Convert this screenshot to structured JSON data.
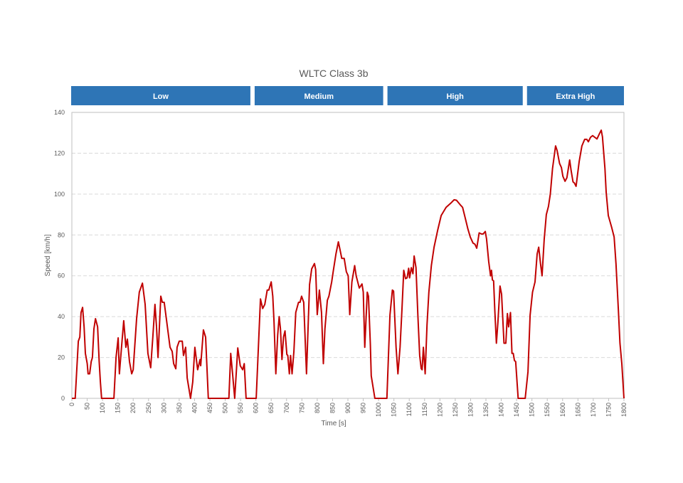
{
  "chart_data": {
    "type": "line",
    "title": "WLTC Class 3b",
    "xlabel": "Time [s]",
    "ylabel": "Speed [km/h]",
    "xlim": [
      0,
      1800
    ],
    "ylim": [
      0,
      140
    ],
    "xticks": [
      0,
      50,
      100,
      150,
      200,
      250,
      300,
      350,
      400,
      450,
      500,
      550,
      600,
      650,
      700,
      750,
      800,
      850,
      900,
      950,
      1000,
      1050,
      1100,
      1150,
      1200,
      1250,
      1300,
      1350,
      1400,
      1450,
      1500,
      1550,
      1600,
      1650,
      1700,
      1750,
      1800
    ],
    "yticks": [
      0,
      20,
      40,
      60,
      80,
      100,
      120,
      140
    ],
    "grid": "horizontal dashed",
    "line_color": "#c00000",
    "phases": [
      {
        "label": "Low",
        "start": 0,
        "end": 589
      },
      {
        "label": "Medium",
        "start": 589,
        "end": 1022
      },
      {
        "label": "High",
        "start": 1022,
        "end": 1477
      },
      {
        "label": "Extra High",
        "start": 1477,
        "end": 1800
      }
    ],
    "phase_color": "#2e75b6",
    "series": [
      {
        "points": [
          [
            0,
            0
          ],
          [
            11,
            0
          ],
          [
            21,
            28
          ],
          [
            26,
            30
          ],
          [
            30,
            42
          ],
          [
            35,
            44.5
          ],
          [
            40,
            35
          ],
          [
            44,
            22
          ],
          [
            50,
            17
          ],
          [
            53,
            12
          ],
          [
            58,
            12
          ],
          [
            63,
            18
          ],
          [
            67,
            20
          ],
          [
            72,
            34
          ],
          [
            77,
            39
          ],
          [
            84,
            35
          ],
          [
            89,
            18
          ],
          [
            93,
            8
          ],
          [
            97,
            0
          ],
          [
            137,
            0
          ],
          [
            144,
            20
          ],
          [
            151,
            29.6
          ],
          [
            155,
            12
          ],
          [
            162,
            25
          ],
          [
            169,
            38
          ],
          [
            176,
            25
          ],
          [
            181,
            29
          ],
          [
            188,
            18
          ],
          [
            195,
            12
          ],
          [
            200,
            14
          ],
          [
            211,
            39
          ],
          [
            220,
            52
          ],
          [
            230,
            56.4
          ],
          [
            239,
            46
          ],
          [
            248,
            22
          ],
          [
            257,
            15
          ],
          [
            264,
            30
          ],
          [
            271,
            46
          ],
          [
            276,
            35
          ],
          [
            281,
            20
          ],
          [
            290,
            50
          ],
          [
            295,
            47
          ],
          [
            301,
            47
          ],
          [
            308,
            39
          ],
          [
            320,
            25
          ],
          [
            327,
            23
          ],
          [
            332,
            17
          ],
          [
            339,
            14.5
          ],
          [
            343,
            25
          ],
          [
            350,
            28
          ],
          [
            360,
            28
          ],
          [
            364,
            21
          ],
          [
            371,
            25
          ],
          [
            376,
            10
          ],
          [
            387,
            0
          ],
          [
            394,
            8
          ],
          [
            401,
            25
          ],
          [
            410,
            14
          ],
          [
            418,
            19
          ],
          [
            420,
            16
          ],
          [
            429,
            33.5
          ],
          [
            436,
            30
          ],
          [
            445,
            0
          ],
          [
            512,
            0
          ],
          [
            518,
            22
          ],
          [
            524,
            12
          ],
          [
            531,
            0
          ],
          [
            541,
            24.7
          ],
          [
            549,
            16
          ],
          [
            557,
            14
          ],
          [
            562,
            17
          ],
          [
            568,
            0
          ],
          [
            601,
            0
          ],
          [
            615,
            48.7
          ],
          [
            622,
            44
          ],
          [
            629,
            46
          ],
          [
            637,
            53
          ],
          [
            642,
            53
          ],
          [
            650,
            57
          ],
          [
            655,
            50
          ],
          [
            659,
            38
          ],
          [
            665,
            12
          ],
          [
            671,
            31
          ],
          [
            676,
            40
          ],
          [
            680,
            34
          ],
          [
            685,
            19
          ],
          [
            690,
            30
          ],
          [
            695,
            33
          ],
          [
            701,
            21.5
          ],
          [
            704,
            21
          ],
          [
            709,
            12
          ],
          [
            713,
            21
          ],
          [
            718,
            12
          ],
          [
            724,
            23
          ],
          [
            730,
            42
          ],
          [
            739,
            47
          ],
          [
            744,
            47
          ],
          [
            749,
            50
          ],
          [
            756,
            47
          ],
          [
            765,
            12
          ],
          [
            775,
            55.7
          ],
          [
            782,
            63.4
          ],
          [
            791,
            66
          ],
          [
            795,
            63
          ],
          [
            800,
            41
          ],
          [
            807,
            53
          ],
          [
            814,
            42
          ],
          [
            820,
            17
          ],
          [
            825,
            34
          ],
          [
            833,
            48
          ],
          [
            838,
            50
          ],
          [
            847,
            57
          ],
          [
            852,
            62
          ],
          [
            861,
            70.7
          ],
          [
            869,
            76.6
          ],
          [
            874,
            73
          ],
          [
            880,
            68.5
          ],
          [
            888,
            68.5
          ],
          [
            895,
            62
          ],
          [
            901,
            60
          ],
          [
            906,
            41
          ],
          [
            913,
            57
          ],
          [
            922,
            65
          ],
          [
            927,
            60
          ],
          [
            937,
            54
          ],
          [
            946,
            56
          ],
          [
            950,
            52
          ],
          [
            955,
            25
          ],
          [
            963,
            52
          ],
          [
            967,
            50
          ],
          [
            973,
            27
          ],
          [
            976,
            11
          ],
          [
            988,
            0
          ],
          [
            1027,
            0
          ],
          [
            1037,
            40.7
          ],
          [
            1045,
            53
          ],
          [
            1049,
            52.5
          ],
          [
            1057,
            25
          ],
          [
            1063,
            12
          ],
          [
            1070,
            25
          ],
          [
            1076,
            43
          ],
          [
            1082,
            62.7
          ],
          [
            1088,
            58.6
          ],
          [
            1093,
            59
          ],
          [
            1098,
            63.7
          ],
          [
            1101,
            59
          ],
          [
            1107,
            64
          ],
          [
            1112,
            61
          ],
          [
            1116,
            69.7
          ],
          [
            1122,
            64
          ],
          [
            1128,
            41
          ],
          [
            1134,
            21
          ],
          [
            1139,
            14.6
          ],
          [
            1142,
            14
          ],
          [
            1146,
            25
          ],
          [
            1152,
            12
          ],
          [
            1158,
            36
          ],
          [
            1164,
            52
          ],
          [
            1172,
            65
          ],
          [
            1181,
            74
          ],
          [
            1193,
            82.5
          ],
          [
            1204,
            89.5
          ],
          [
            1220,
            93.5
          ],
          [
            1235,
            95.5
          ],
          [
            1246,
            97.2
          ],
          [
            1254,
            97
          ],
          [
            1266,
            94.8
          ],
          [
            1274,
            93.5
          ],
          [
            1283,
            88
          ],
          [
            1291,
            83
          ],
          [
            1299,
            79
          ],
          [
            1308,
            76
          ],
          [
            1314,
            75.5
          ],
          [
            1320,
            73.5
          ],
          [
            1328,
            81
          ],
          [
            1335,
            80.5
          ],
          [
            1341,
            80.5
          ],
          [
            1348,
            81.7
          ],
          [
            1352,
            78
          ],
          [
            1359,
            67
          ],
          [
            1365,
            60
          ],
          [
            1368,
            62.7
          ],
          [
            1371,
            58
          ],
          [
            1375,
            57.5
          ],
          [
            1379,
            43
          ],
          [
            1384,
            27
          ],
          [
            1389,
            37
          ],
          [
            1396,
            55
          ],
          [
            1401,
            51
          ],
          [
            1409,
            27
          ],
          [
            1415,
            27
          ],
          [
            1420,
            41.5
          ],
          [
            1424,
            35
          ],
          [
            1430,
            42
          ],
          [
            1435,
            22
          ],
          [
            1439,
            22
          ],
          [
            1443,
            18.5
          ],
          [
            1447,
            18
          ],
          [
            1455,
            0
          ],
          [
            1478,
            0
          ],
          [
            1487,
            13
          ],
          [
            1494,
            40.7
          ],
          [
            1502,
            52
          ],
          [
            1510,
            57
          ],
          [
            1517,
            70.7
          ],
          [
            1522,
            74
          ],
          [
            1528,
            66
          ],
          [
            1533,
            60
          ],
          [
            1540,
            77.8
          ],
          [
            1547,
            90
          ],
          [
            1554,
            94
          ],
          [
            1560,
            100
          ],
          [
            1567,
            112.5
          ],
          [
            1577,
            123.6
          ],
          [
            1582,
            121.4
          ],
          [
            1590,
            115
          ],
          [
            1596,
            113
          ],
          [
            1601,
            108.7
          ],
          [
            1608,
            106.3
          ],
          [
            1614,
            108
          ],
          [
            1623,
            116.7
          ],
          [
            1628,
            111.4
          ],
          [
            1634,
            106
          ],
          [
            1638,
            105.5
          ],
          [
            1644,
            103.8
          ],
          [
            1654,
            116
          ],
          [
            1663,
            123.6
          ],
          [
            1672,
            126.8
          ],
          [
            1679,
            126.8
          ],
          [
            1684,
            125.6
          ],
          [
            1691,
            127.8
          ],
          [
            1698,
            128.6
          ],
          [
            1705,
            127.8
          ],
          [
            1712,
            127
          ],
          [
            1720,
            129.5
          ],
          [
            1726,
            131.3
          ],
          [
            1730,
            128
          ],
          [
            1738,
            112.5
          ],
          [
            1742,
            101
          ],
          [
            1749,
            89.5
          ],
          [
            1760,
            83.6
          ],
          [
            1768,
            79
          ],
          [
            1774,
            66
          ],
          [
            1782,
            43
          ],
          [
            1787,
            27
          ],
          [
            1793,
            17
          ],
          [
            1800,
            0
          ]
        ]
      }
    ]
  }
}
